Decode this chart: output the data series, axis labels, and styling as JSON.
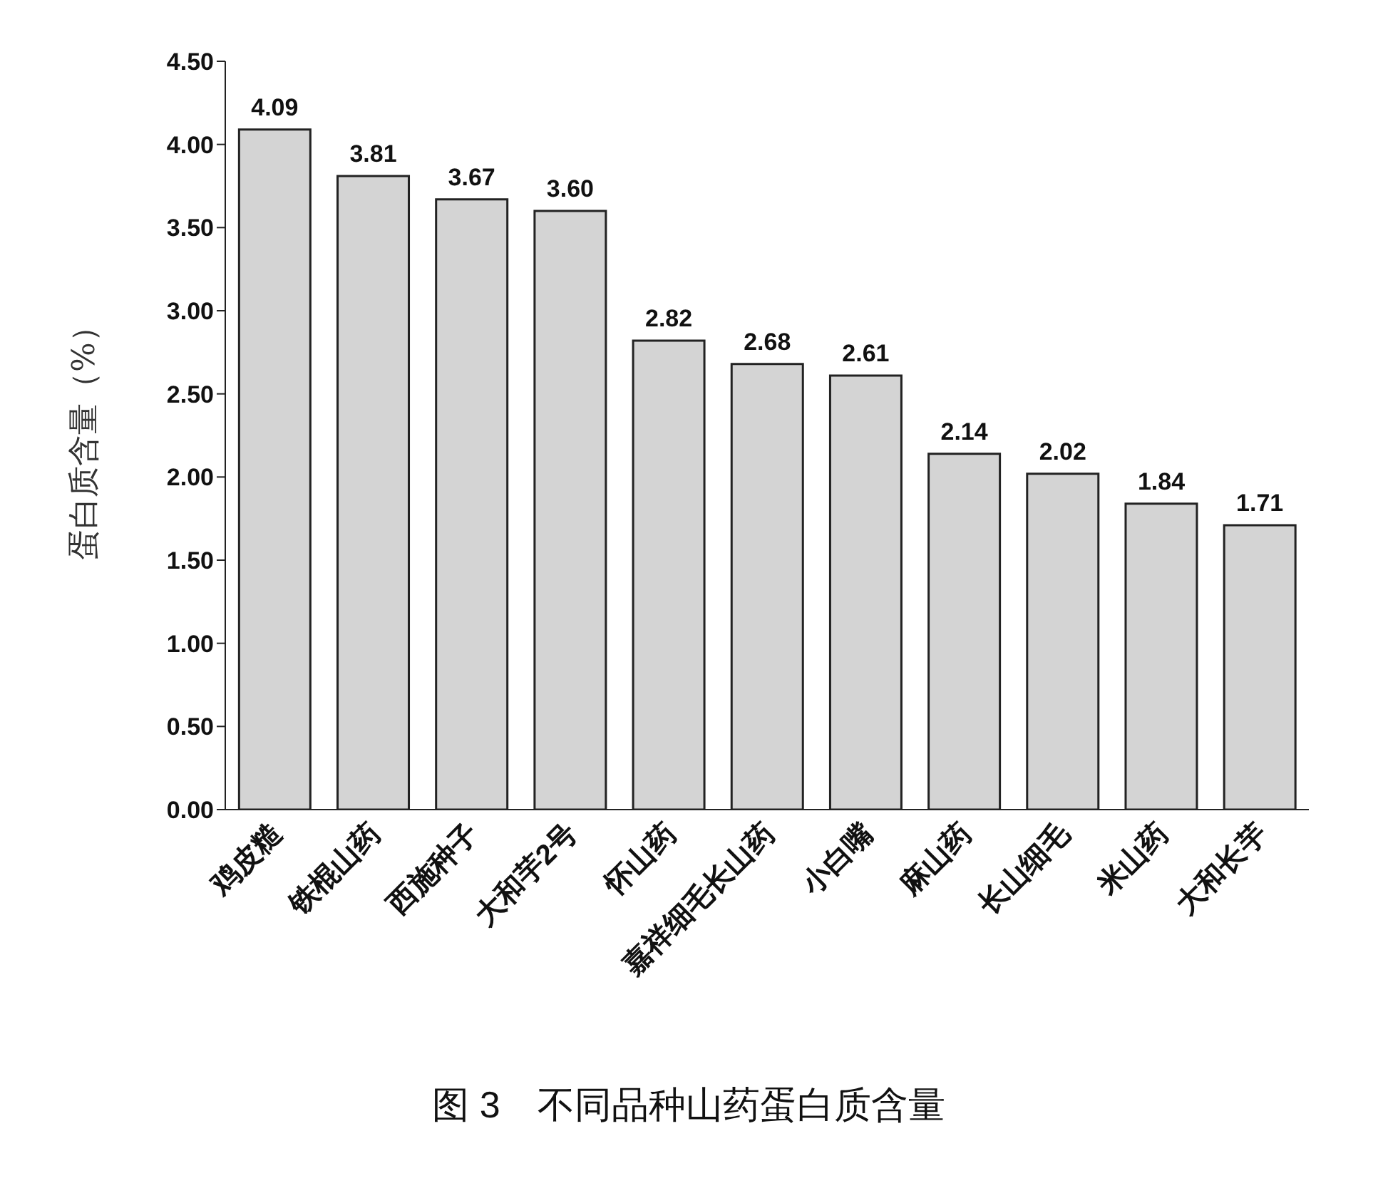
{
  "chart_data": {
    "type": "bar",
    "title": "图 3　不同品种山药蛋白质含量",
    "ylabel": "蛋白质含量（%）",
    "categories": [
      "鸡皮糙",
      "铁棍山药",
      "西施种子",
      "大和芋2号",
      "怀山药",
      "嘉祥细毛长山药",
      "小白嘴",
      "麻山药",
      "长山细毛",
      "米山药",
      "大和长芋"
    ],
    "values": [
      4.09,
      3.81,
      3.67,
      3.6,
      2.82,
      2.68,
      2.61,
      2.14,
      2.02,
      1.84,
      1.71
    ],
    "value_labels": [
      "4.09",
      "3.81",
      "3.67",
      "3.60",
      "2.82",
      "2.68",
      "2.61",
      "2.14",
      "2.02",
      "1.84",
      "1.71"
    ],
    "color": "#d4d4d4",
    "ylim": [
      0,
      4.5
    ],
    "yticks": [
      {
        "value": 0,
        "label": "0.00"
      },
      {
        "value": 0.5,
        "label": "0.50"
      },
      {
        "value": 1,
        "label": "1.00"
      },
      {
        "value": 1.5,
        "label": "1.50"
      },
      {
        "value": 2,
        "label": "2.00"
      },
      {
        "value": 2.5,
        "label": "2.50"
      },
      {
        "value": 3,
        "label": "3.00"
      },
      {
        "value": 3.5,
        "label": "3.50"
      },
      {
        "value": 4,
        "label": "4.00"
      },
      {
        "value": 4.5,
        "label": "4.50"
      }
    ],
    "grid": false,
    "legend": false
  }
}
